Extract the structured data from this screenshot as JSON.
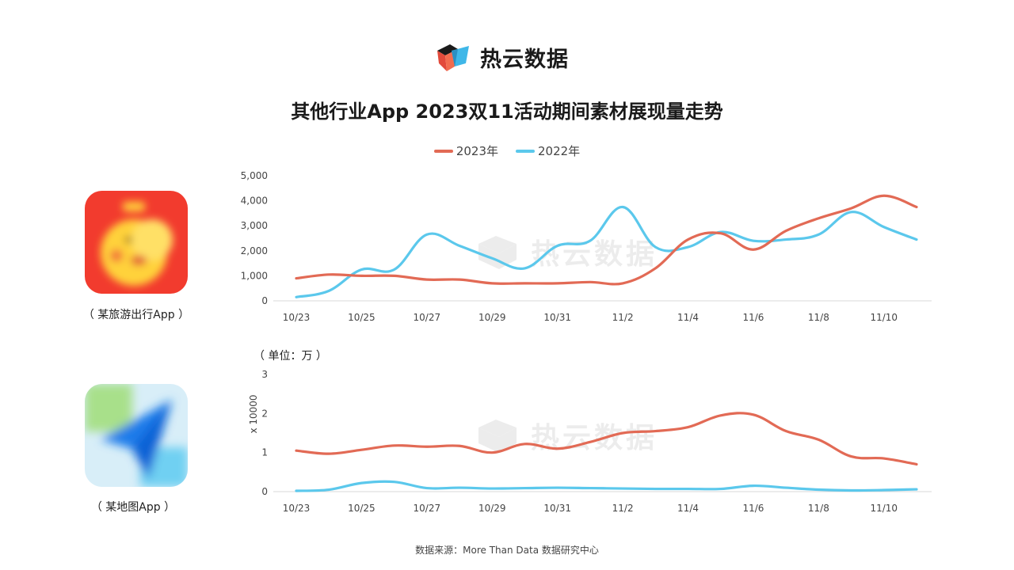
{
  "brand": {
    "name": "热云数据"
  },
  "title": "其他行业App 2023双11活动期间素材展现量走势",
  "legend": [
    {
      "label": "2023年",
      "color": "#E26A55"
    },
    {
      "label": "2022年",
      "color": "#5BC8EC"
    }
  ],
  "apps": [
    {
      "caption": "（ 某旅游出行App ）",
      "icon": "travel-app-icon"
    },
    {
      "caption": "（ 某地图App ）",
      "icon": "map-app-icon"
    }
  ],
  "unit_label": "（ 单位：万 ）",
  "watermark": "热云数据",
  "source": "数据来源：More Than Data 数据研究中心",
  "chart_data": [
    {
      "type": "line",
      "categories": [
        "10/23",
        "10/24",
        "10/25",
        "10/26",
        "10/27",
        "10/28",
        "10/29",
        "10/30",
        "10/31",
        "11/1",
        "11/2",
        "11/3",
        "11/4",
        "11/5",
        "11/6",
        "11/7",
        "11/8",
        "11/9",
        "11/10",
        "11/11"
      ],
      "x_tick_labels": [
        "10/23",
        "10/25",
        "10/27",
        "10/29",
        "10/31",
        "11/2",
        "11/4",
        "11/6",
        "11/8",
        "11/10"
      ],
      "y_tick_labels": [
        "0",
        "1,000",
        "2,000",
        "3,000",
        "4,000",
        "5,000"
      ],
      "ylim": [
        0,
        5000
      ],
      "series": [
        {
          "name": "2023年",
          "color": "#E26A55",
          "values": [
            900,
            1050,
            1000,
            1000,
            850,
            850,
            700,
            700,
            700,
            750,
            700,
            1300,
            2450,
            2700,
            2050,
            2800,
            3300,
            3700,
            4200,
            3750
          ]
        },
        {
          "name": "2022年",
          "color": "#5BC8EC",
          "values": [
            150,
            400,
            1250,
            1250,
            2650,
            2200,
            1700,
            1300,
            2200,
            2400,
            3750,
            2150,
            2150,
            2750,
            2400,
            2450,
            2650,
            3550,
            2950,
            2450
          ]
        }
      ]
    },
    {
      "type": "line",
      "categories": [
        "10/23",
        "10/24",
        "10/25",
        "10/26",
        "10/27",
        "10/28",
        "10/29",
        "10/30",
        "10/31",
        "11/1",
        "11/2",
        "11/3",
        "11/4",
        "11/5",
        "11/6",
        "11/7",
        "11/8",
        "11/9",
        "11/10",
        "11/11"
      ],
      "x_tick_labels": [
        "10/23",
        "10/25",
        "10/27",
        "10/29",
        "10/31",
        "11/2",
        "11/4",
        "11/6",
        "11/8",
        "11/10"
      ],
      "y_tick_labels": [
        "0",
        "1",
        "2",
        "3"
      ],
      "ylabel": "x 10000",
      "ylim": [
        0,
        3
      ],
      "series": [
        {
          "name": "2023年",
          "color": "#E26A55",
          "values": [
            1.05,
            0.97,
            1.07,
            1.18,
            1.15,
            1.17,
            1.0,
            1.22,
            1.1,
            1.27,
            1.5,
            1.55,
            1.65,
            1.95,
            1.97,
            1.55,
            1.33,
            0.9,
            0.85,
            0.7
          ]
        },
        {
          "name": "2022年",
          "color": "#5BC8EC",
          "values": [
            0.02,
            0.05,
            0.22,
            0.25,
            0.09,
            0.1,
            0.08,
            0.09,
            0.1,
            0.09,
            0.08,
            0.07,
            0.07,
            0.07,
            0.15,
            0.1,
            0.05,
            0.03,
            0.04,
            0.06
          ]
        }
      ]
    }
  ]
}
